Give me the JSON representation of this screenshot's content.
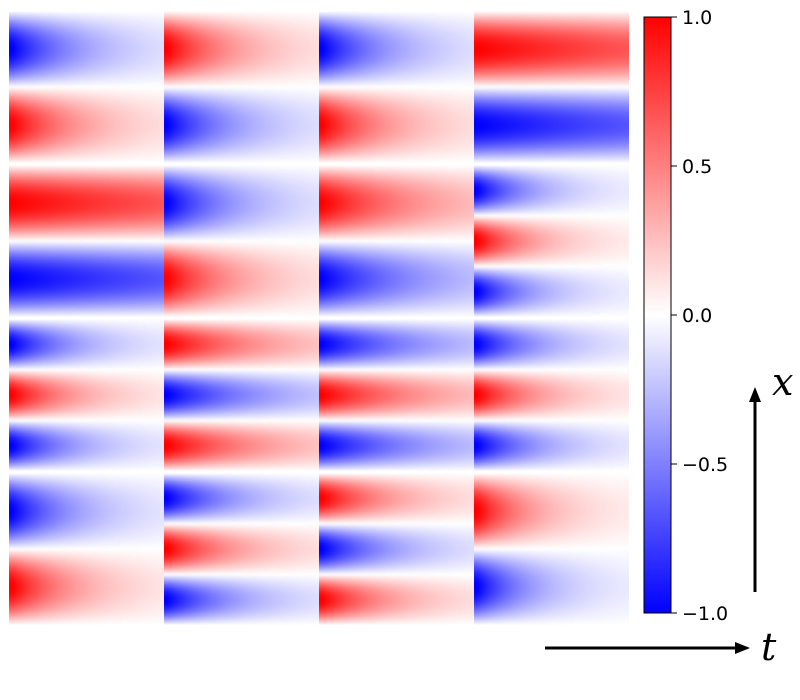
{
  "chart_data": {
    "type": "heatmap",
    "grid": {
      "rows": 4,
      "cols": 4
    },
    "colormap": {
      "name": "bwr",
      "low": "#0000ff",
      "mid": "#ffffff",
      "high": "#ff0000"
    },
    "vmin": -1.0,
    "vmax": 1.0,
    "colorbar": {
      "ticks": [
        1.0,
        0.5,
        0.0,
        -0.5,
        -1.0
      ],
      "tick_labels": [
        "1.0",
        "0.5",
        "0.0",
        "−0.5",
        "−1.0"
      ]
    },
    "panels": [
      [
        {
          "k": 1.0,
          "p": 0.25,
          "d": 2.0
        },
        {
          "k": 1.0,
          "p": 0.75,
          "d": 2.0
        },
        {
          "k": 1.0,
          "p": 0.25,
          "d": 2.0
        },
        {
          "k": 1.0,
          "p": 0.75,
          "d": 0.4
        }
      ],
      [
        {
          "k": 1.0,
          "p": 0.75,
          "d": 0.4
        },
        {
          "k": 1.0,
          "p": 0.25,
          "d": 2.0
        },
        {
          "k": 1.0,
          "p": 0.75,
          "d": 1.3
        },
        {
          "k": 1.5,
          "p": 0.25,
          "d": 2.5
        }
      ],
      [
        {
          "k": 1.5,
          "p": 0.25,
          "d": 2.2
        },
        {
          "k": 1.5,
          "p": 0.75,
          "d": 1.4
        },
        {
          "k": 1.5,
          "p": 0.25,
          "d": 1.3
        },
        {
          "k": 1.5,
          "p": 0.25,
          "d": 2.2
        }
      ],
      [
        {
          "k": 1.0,
          "p": 0.25,
          "d": 2.2
        },
        {
          "k": 1.5,
          "p": 0.25,
          "d": 2.0
        },
        {
          "k": 1.5,
          "p": 0.75,
          "d": 2.0
        },
        {
          "k": 1.0,
          "p": 0.75,
          "d": 2.5
        }
      ]
    ],
    "xlabel": "t",
    "ylabel": "x"
  }
}
